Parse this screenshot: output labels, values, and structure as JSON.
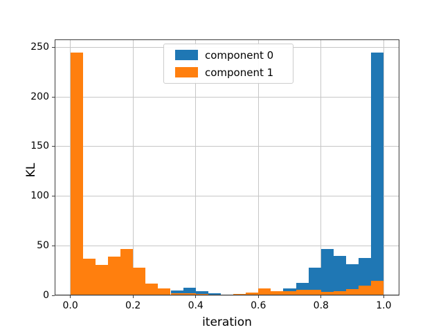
{
  "chart_data": {
    "type": "bar",
    "subtype": "histogram",
    "title": "",
    "xlabel": "iteration",
    "ylabel": "KL",
    "xlim": [
      -0.05,
      1.05
    ],
    "ylim": [
      0,
      258
    ],
    "grid": true,
    "grid_color": "#c6c6c6",
    "spine_color": "#3b3b3b",
    "legend_position": "upper center",
    "bins": {
      "start": 0.0,
      "width": 0.04,
      "count": 25
    },
    "xticks": {
      "values": [
        0.0,
        0.2,
        0.4,
        0.6,
        0.8,
        1.0
      ],
      "labels": [
        "0.0",
        "0.2",
        "0.4",
        "0.6",
        "0.8",
        "1.0"
      ]
    },
    "yticks": {
      "values": [
        0,
        50,
        100,
        150,
        200,
        250
      ],
      "labels": [
        "0",
        "50",
        "100",
        "150",
        "200",
        "250"
      ]
    },
    "series": [
      {
        "name": "component 0",
        "color": "#1f77b4",
        "values": [
          15,
          10,
          6.5,
          4,
          3.5,
          5.5,
          5.5,
          4,
          5,
          7.5,
          4,
          2,
          0.7,
          1,
          1.5,
          2,
          2,
          7,
          12.5,
          28,
          47,
          39.5,
          31.5,
          38,
          245
        ]
      },
      {
        "name": "component 1",
        "color": "#ff7f0e",
        "values": [
          245,
          37,
          31,
          39,
          47,
          28,
          12,
          7,
          2,
          2,
          1.5,
          1,
          0.7,
          1.2,
          3,
          7,
          4.5,
          4,
          5.5,
          5.5,
          3.5,
          4,
          6.5,
          10,
          15
        ]
      }
    ]
  }
}
